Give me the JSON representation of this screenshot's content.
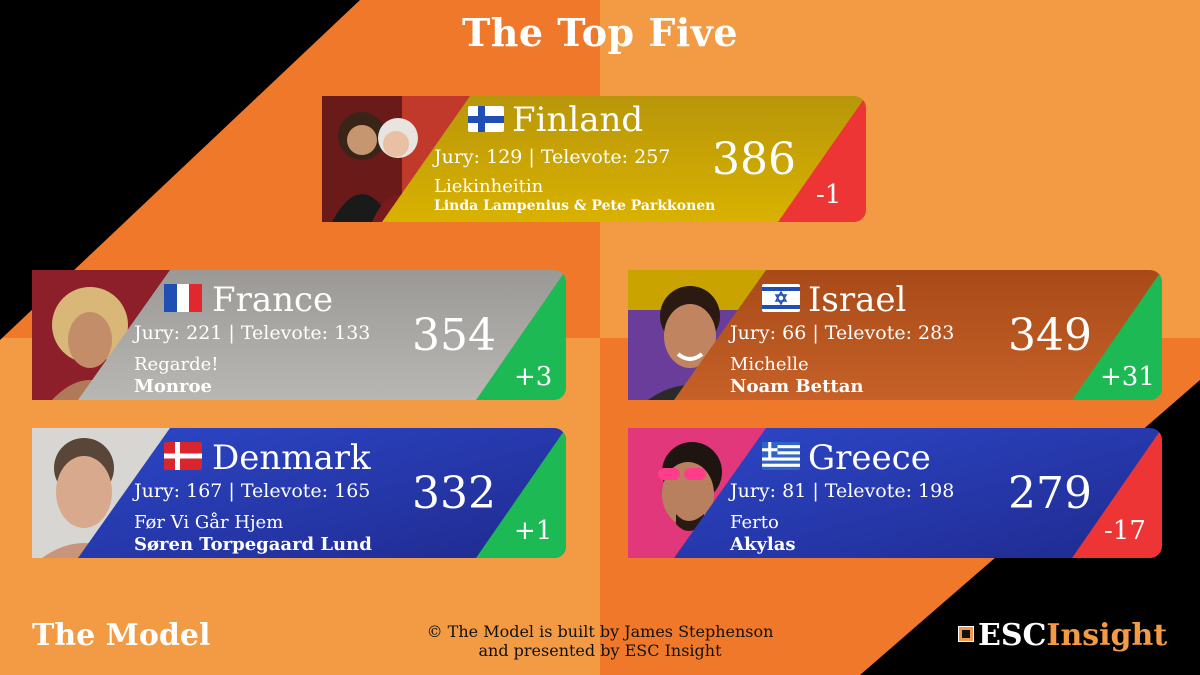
{
  "title": "The Top Five",
  "footer": {
    "model_label": "The Model",
    "credit_line1": "© The Model is built by James Stephenson",
    "credit_line2": "and presented by ESC Insight",
    "logo_part1": "ESC",
    "logo_part2": "Insight"
  },
  "entries": [
    {
      "country": "Finland",
      "jury": "Jury: 129 | Televote: 257",
      "total": "386",
      "song": "Liekinheitin",
      "artist": "Linda Lampenius & Pete Parkkonen",
      "delta": "-1"
    },
    {
      "country": "France",
      "jury": "Jury: 221 | Televote: 133",
      "total": "354",
      "song": "Regarde!",
      "artist": "Monroe",
      "delta": "+3"
    },
    {
      "country": "Israel",
      "jury": "Jury: 66 | Televote: 283",
      "total": "349",
      "song": "Michelle",
      "artist": "Noam Bettan",
      "delta": "+31"
    },
    {
      "country": "Denmark",
      "jury": "Jury: 167 | Televote: 165",
      "total": "332",
      "song": "Før Vi Går Hjem",
      "artist": "Søren Torpegaard Lund",
      "delta": "+1"
    },
    {
      "country": "Greece",
      "jury": "Jury: 81 | Televote: 198",
      "total": "279",
      "song": "Ferto",
      "artist": "Akylas",
      "delta": "-17"
    }
  ],
  "colors": {
    "background_orange": "#f0782a",
    "background_black": "#000000",
    "gold_panel": "#c9a400",
    "silver_panel": "#a9a8a6",
    "bronze_panel": "#b5531e",
    "blue_panel": "#2535a8",
    "delta_up": "#1db954",
    "delta_down": "#ee3535"
  }
}
